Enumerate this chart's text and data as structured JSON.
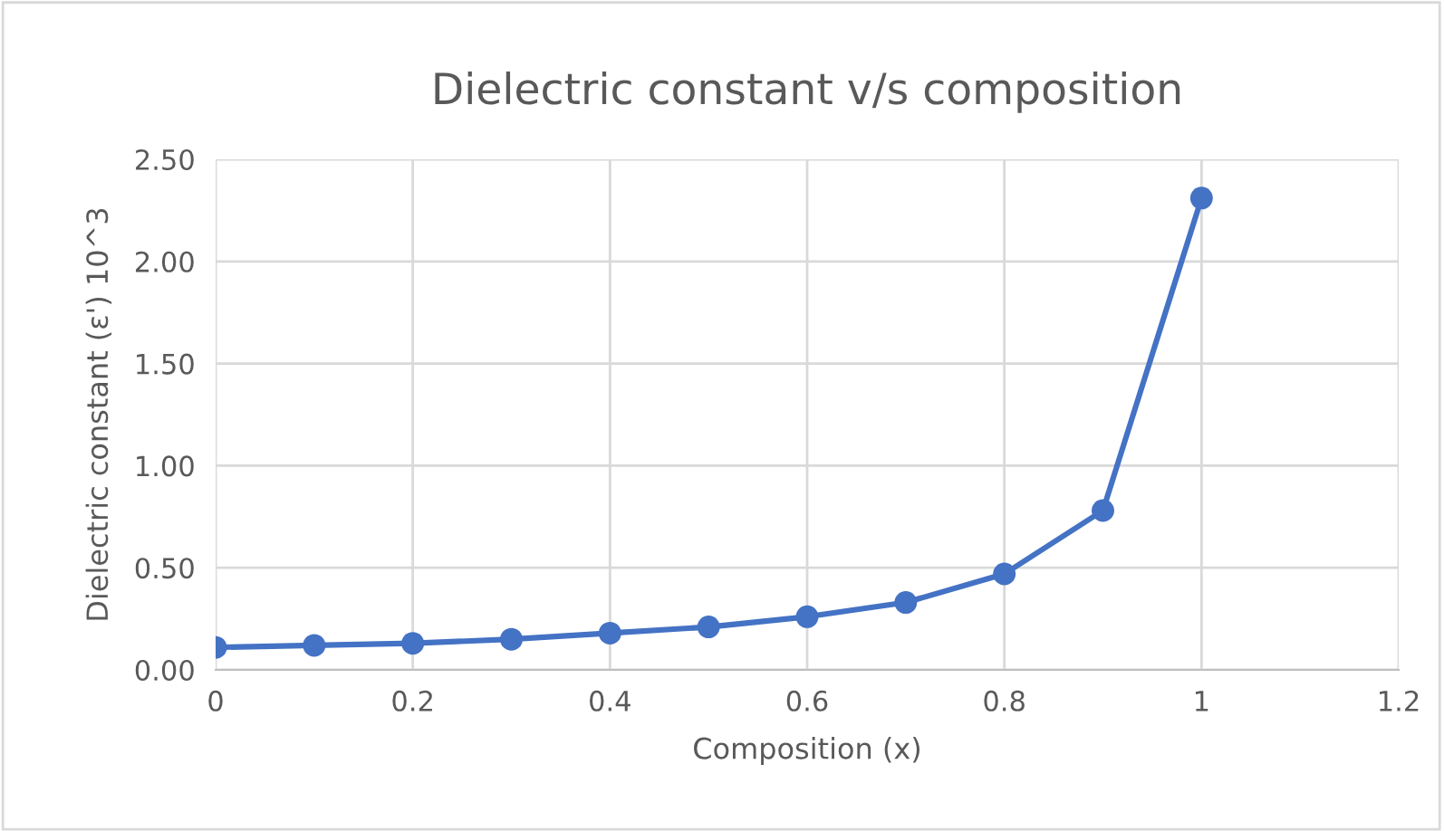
{
  "chart_data": {
    "type": "line",
    "title": "Dielectric constant v/s composition",
    "xlabel": "Composition (x)",
    "ylabel": "Dielectric constant (ε') 10^3",
    "x": [
      0,
      0.1,
      0.2,
      0.3,
      0.4,
      0.5,
      0.6,
      0.7,
      0.8,
      0.9,
      1.0
    ],
    "series": [
      {
        "color": "#4472c4",
        "values": [
          0.11,
          0.12,
          0.13,
          0.15,
          0.18,
          0.21,
          0.26,
          0.33,
          0.47,
          0.78,
          2.31
        ]
      }
    ],
    "xlim": [
      0,
      1.2
    ],
    "xticks": [
      0,
      0.2,
      0.4,
      0.6,
      0.8,
      1,
      1.2
    ],
    "ylim": [
      0,
      2.5
    ],
    "yticks": [
      {
        "value": 0,
        "label": "0.00"
      },
      {
        "value": 0.5,
        "label": "0.50"
      },
      {
        "value": 1,
        "label": "1.00"
      },
      {
        "value": 1.5,
        "label": "1.50"
      },
      {
        "value": 2,
        "label": "2.00"
      },
      {
        "value": 2.5,
        "label": "2.50"
      }
    ],
    "grid": true,
    "marker": "circle",
    "line_style": "solid",
    "legend": false
  }
}
